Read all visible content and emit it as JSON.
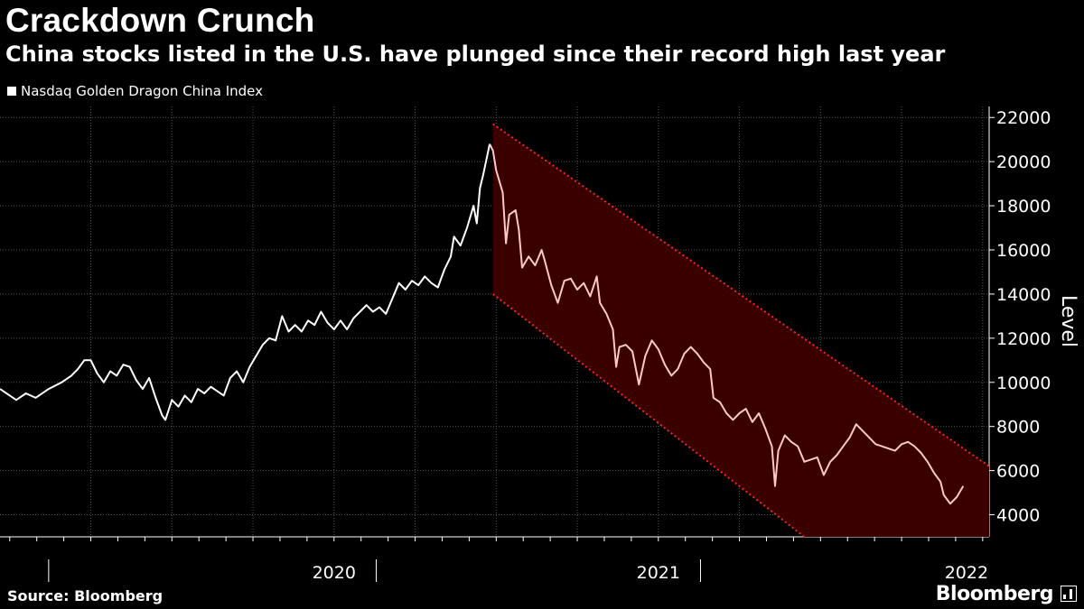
{
  "header": {
    "title": "Crackdown Crunch",
    "subtitle": "China stocks listed in the U.S. have plunged since their record high last year",
    "legend_label": "Nasdaq Golden Dragon China Index"
  },
  "footer": {
    "source": "Source: Bloomberg",
    "brand": "Bloomberg"
  },
  "colors": {
    "background": "#000000",
    "line": "#ffffff",
    "line_after_peak": "#ffc8c8",
    "channel_fill": "#3a0000",
    "channel_edge": "#ff2020"
  },
  "chart_data": {
    "type": "line",
    "title": "Crackdown Crunch",
    "ylabel": "Level",
    "xlabel": "",
    "ylim": [
      3000,
      22500
    ],
    "yticks": [
      4000,
      6000,
      8000,
      10000,
      12000,
      14000,
      16000,
      18000,
      20000,
      22000
    ],
    "xlim": [
      2019.47,
      2022.52
    ],
    "year_labels": [
      {
        "label": "2020",
        "x": 2020.5
      },
      {
        "label": "2021",
        "x": 2021.5
      },
      {
        "label": "2022",
        "x": 2022.45
      }
    ],
    "year_separators": [
      2019.62,
      2020.63,
      2021.63
    ],
    "grid": true,
    "legend_position": "top-left",
    "series": [
      {
        "name": "Nasdaq Golden Dragon China Index",
        "points": [
          [
            2019.47,
            9700
          ],
          [
            2019.5,
            9400
          ],
          [
            2019.52,
            9200
          ],
          [
            2019.55,
            9500
          ],
          [
            2019.58,
            9300
          ],
          [
            2019.62,
            9700
          ],
          [
            2019.66,
            10000
          ],
          [
            2019.69,
            10300
          ],
          [
            2019.71,
            10600
          ],
          [
            2019.73,
            11000
          ],
          [
            2019.75,
            11000
          ],
          [
            2019.77,
            10400
          ],
          [
            2019.79,
            10000
          ],
          [
            2019.81,
            10500
          ],
          [
            2019.83,
            10300
          ],
          [
            2019.85,
            10800
          ],
          [
            2019.87,
            10700
          ],
          [
            2019.89,
            10100
          ],
          [
            2019.91,
            9700
          ],
          [
            2019.93,
            10200
          ],
          [
            2019.95,
            9300
          ],
          [
            2019.97,
            8500
          ],
          [
            2019.98,
            8300
          ],
          [
            2020.0,
            9200
          ],
          [
            2020.02,
            8900
          ],
          [
            2020.04,
            9400
          ],
          [
            2020.06,
            9100
          ],
          [
            2020.08,
            9700
          ],
          [
            2020.1,
            9500
          ],
          [
            2020.12,
            9800
          ],
          [
            2020.14,
            9600
          ],
          [
            2020.16,
            9400
          ],
          [
            2020.18,
            10200
          ],
          [
            2020.2,
            10500
          ],
          [
            2020.22,
            10000
          ],
          [
            2020.24,
            10700
          ],
          [
            2020.26,
            11200
          ],
          [
            2020.28,
            11700
          ],
          [
            2020.3,
            12000
          ],
          [
            2020.32,
            11900
          ],
          [
            2020.34,
            13000
          ],
          [
            2020.36,
            12300
          ],
          [
            2020.38,
            12600
          ],
          [
            2020.4,
            12300
          ],
          [
            2020.42,
            12800
          ],
          [
            2020.44,
            12600
          ],
          [
            2020.46,
            13200
          ],
          [
            2020.48,
            12700
          ],
          [
            2020.5,
            12400
          ],
          [
            2020.52,
            12800
          ],
          [
            2020.54,
            12400
          ],
          [
            2020.56,
            12900
          ],
          [
            2020.58,
            13200
          ],
          [
            2020.6,
            13500
          ],
          [
            2020.62,
            13200
          ],
          [
            2020.64,
            13400
          ],
          [
            2020.66,
            13100
          ],
          [
            2020.68,
            13800
          ],
          [
            2020.7,
            14500
          ],
          [
            2020.72,
            14200
          ],
          [
            2020.74,
            14600
          ],
          [
            2020.76,
            14400
          ],
          [
            2020.78,
            14800
          ],
          [
            2020.8,
            14500
          ],
          [
            2020.82,
            14300
          ],
          [
            2020.84,
            15100
          ],
          [
            2020.86,
            15700
          ],
          [
            2020.87,
            16600
          ],
          [
            2020.89,
            16200
          ],
          [
            2020.91,
            17000
          ],
          [
            2020.93,
            18000
          ],
          [
            2020.94,
            17200
          ],
          [
            2020.95,
            18800
          ],
          [
            2020.96,
            19400
          ],
          [
            2020.97,
            20100
          ],
          [
            2020.98,
            20800
          ],
          [
            2020.99,
            20500
          ],
          [
            2021.0,
            19600
          ],
          [
            2021.02,
            18600
          ],
          [
            2021.03,
            16300
          ],
          [
            2021.04,
            17600
          ],
          [
            2021.06,
            17800
          ],
          [
            2021.07,
            16900
          ],
          [
            2021.08,
            15200
          ],
          [
            2021.1,
            15700
          ],
          [
            2021.12,
            15300
          ],
          [
            2021.14,
            16000
          ],
          [
            2021.15,
            15500
          ],
          [
            2021.17,
            14400
          ],
          [
            2021.19,
            13600
          ],
          [
            2021.21,
            14600
          ],
          [
            2021.23,
            14700
          ],
          [
            2021.25,
            14200
          ],
          [
            2021.27,
            14500
          ],
          [
            2021.29,
            13900
          ],
          [
            2021.31,
            14800
          ],
          [
            2021.32,
            13600
          ],
          [
            2021.34,
            13100
          ],
          [
            2021.36,
            12400
          ],
          [
            2021.37,
            10700
          ],
          [
            2021.38,
            11600
          ],
          [
            2021.4,
            11700
          ],
          [
            2021.42,
            11400
          ],
          [
            2021.44,
            9900
          ],
          [
            2021.46,
            11200
          ],
          [
            2021.48,
            11900
          ],
          [
            2021.5,
            11500
          ],
          [
            2021.52,
            10800
          ],
          [
            2021.54,
            10300
          ],
          [
            2021.56,
            10600
          ],
          [
            2021.58,
            11300
          ],
          [
            2021.6,
            11600
          ],
          [
            2021.62,
            11300
          ],
          [
            2021.64,
            10900
          ],
          [
            2021.66,
            10600
          ],
          [
            2021.67,
            9300
          ],
          [
            2021.69,
            9100
          ],
          [
            2021.71,
            8600
          ],
          [
            2021.73,
            8300
          ],
          [
            2021.75,
            8600
          ],
          [
            2021.77,
            8800
          ],
          [
            2021.79,
            8200
          ],
          [
            2021.81,
            8600
          ],
          [
            2021.83,
            7900
          ],
          [
            2021.85,
            7100
          ],
          [
            2021.86,
            5300
          ],
          [
            2021.87,
            6900
          ],
          [
            2021.89,
            7600
          ],
          [
            2021.91,
            7300
          ],
          [
            2021.93,
            7100
          ],
          [
            2021.95,
            6400
          ],
          [
            2021.97,
            6500
          ],
          [
            2021.99,
            6600
          ],
          [
            2022.01,
            5800
          ],
          [
            2022.03,
            6400
          ],
          [
            2022.05,
            6700
          ],
          [
            2022.07,
            7100
          ],
          [
            2022.09,
            7500
          ],
          [
            2022.11,
            8100
          ],
          [
            2022.13,
            7800
          ],
          [
            2022.15,
            7500
          ],
          [
            2022.17,
            7200
          ],
          [
            2022.19,
            7100
          ],
          [
            2022.21,
            7000
          ],
          [
            2022.23,
            6900
          ],
          [
            2022.25,
            7200
          ],
          [
            2022.27,
            7300
          ],
          [
            2022.29,
            7100
          ],
          [
            2022.31,
            6800
          ],
          [
            2022.33,
            6400
          ],
          [
            2022.35,
            5900
          ],
          [
            2022.37,
            5500
          ],
          [
            2022.38,
            4900
          ],
          [
            2022.4,
            4500
          ],
          [
            2022.42,
            4800
          ],
          [
            2022.44,
            5300
          ]
        ]
      }
    ],
    "channel": {
      "upper": [
        [
          2020.99,
          21700
        ],
        [
          2022.52,
          6200
        ]
      ],
      "lower": [
        [
          2020.99,
          14000
        ],
        [
          2021.95,
          3000
        ]
      ]
    }
  }
}
